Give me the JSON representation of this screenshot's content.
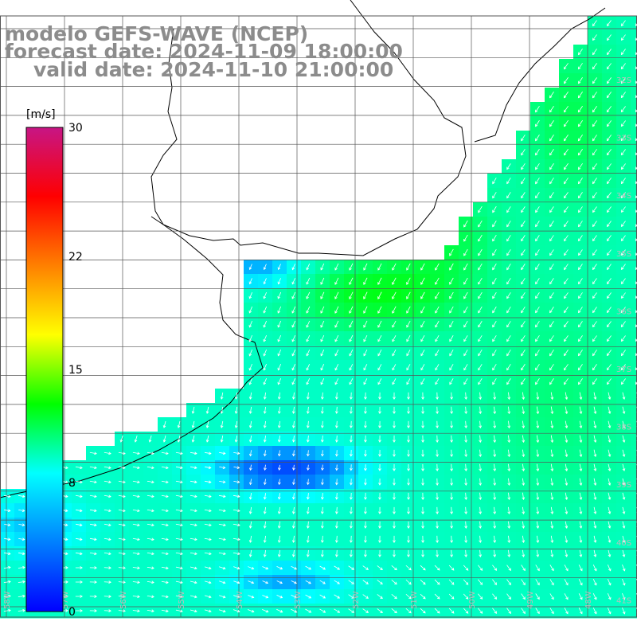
{
  "title": {
    "model": "modelo GEFS-WAVE (NCEP)",
    "forecast": "forecast date: 2024-11-09 18:00:00",
    "valid": "valid date: 2024-11-10 21:00:00"
  },
  "colorbar": {
    "unit": "[m/s]",
    "min": 0,
    "max": 30,
    "ticks": [
      "30",
      "22",
      "15",
      "8",
      "0"
    ],
    "tick_values": [
      30,
      22,
      15,
      8,
      0
    ],
    "colors": [
      "#0000ff",
      "#0080ff",
      "#00ffff",
      "#00ff00",
      "#ffff00",
      "#ff8000",
      "#ff0000",
      "#c71585"
    ]
  },
  "lat_labels": [
    "32S",
    "33S",
    "34S",
    "35S",
    "36S",
    "37S",
    "38S",
    "39S",
    "40S",
    "41S"
  ],
  "lon_labels": [
    "58W",
    "57W",
    "56W",
    "55W",
    "54W",
    "53W",
    "52W",
    "51W",
    "50W",
    "49W",
    "48W"
  ],
  "colors": {
    "title": "#8c8c8c",
    "grid": "#555555",
    "coast": "#000000",
    "arrows": "#ffffff",
    "tick_labels": "#bdbdbd"
  }
}
